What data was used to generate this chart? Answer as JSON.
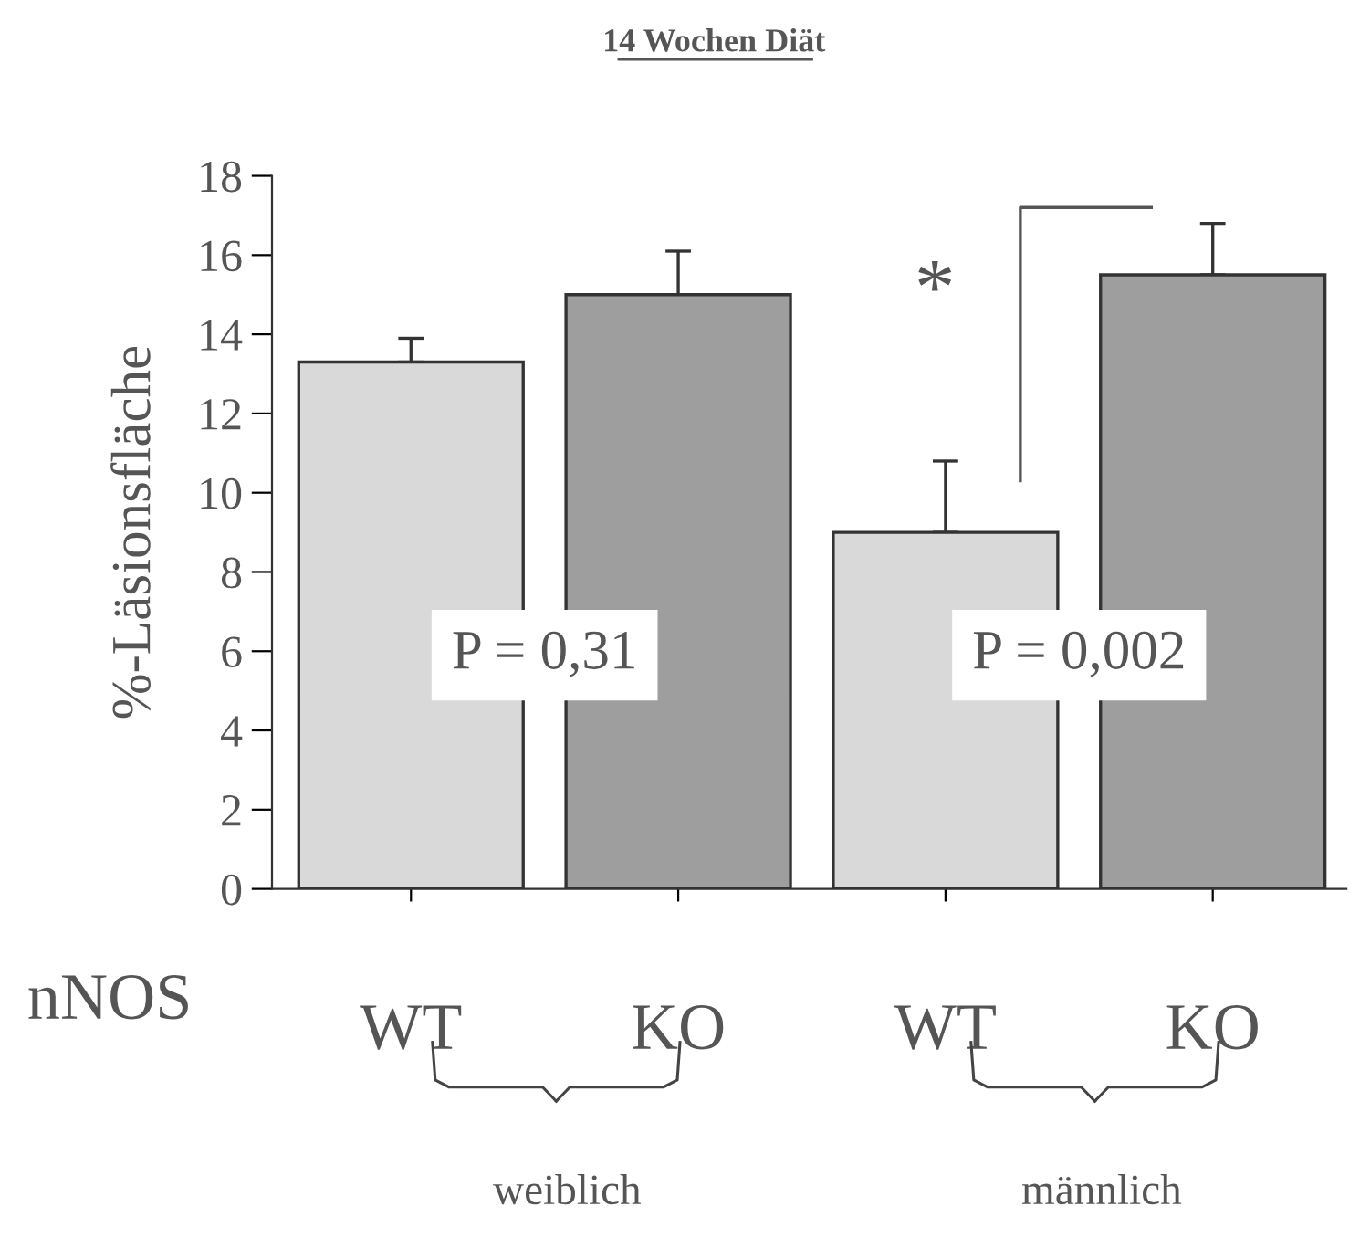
{
  "chart_data": {
    "type": "bar",
    "title": "14 Wochen Diät",
    "ylabel": "%-Läsionsfläche",
    "xlabel": "nNOS",
    "categories": [
      "WT",
      "KO",
      "WT",
      "KO"
    ],
    "values": [
      13.3,
      15.0,
      9.0,
      15.5
    ],
    "colors": [
      "#d9d9d9",
      "#9e9e9e",
      "#d9d9d9",
      "#9e9e9e"
    ],
    "errors": [
      [
        13.3,
        13.9
      ],
      [
        15.0,
        16.1
      ],
      [
        9.0,
        10.8
      ],
      [
        15.5,
        16.8
      ]
    ],
    "ylim": [
      0,
      18
    ],
    "yticks": [
      0,
      2,
      4,
      6,
      8,
      10,
      12,
      14,
      16,
      18
    ],
    "grid": false,
    "legend": false,
    "annotations": [
      "P = 0,31",
      "P = 0,002",
      "*",
      "weiblich",
      "männlich"
    ]
  }
}
